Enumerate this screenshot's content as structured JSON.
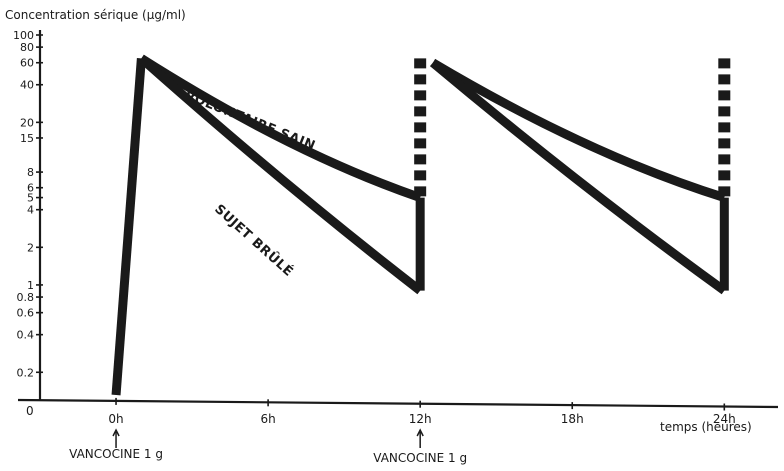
{
  "chart_data": {
    "type": "line",
    "title": "Concentration sérique (µg/ml)",
    "xlabel": "temps (heures)",
    "ylabel": "Concentration sérique (µg/ml)",
    "y_scale": "log",
    "ylim": [
      0.12,
      100
    ],
    "xlim": [
      -3,
      26
    ],
    "y_ticks": [
      {
        "value": 100,
        "label": "100"
      },
      {
        "value": 80,
        "label": "80"
      },
      {
        "value": 60,
        "label": "60"
      },
      {
        "value": 40,
        "label": "40"
      },
      {
        "value": 20,
        "label": "20"
      },
      {
        "value": 15,
        "label": "15"
      },
      {
        "value": 8,
        "label": "8"
      },
      {
        "value": 6,
        "label": "6"
      },
      {
        "value": 5,
        "label": "5"
      },
      {
        "value": 4,
        "label": "4"
      },
      {
        "value": 2,
        "label": "2"
      },
      {
        "value": 1,
        "label": "1"
      },
      {
        "value": 0.8,
        "label": "0.8"
      },
      {
        "value": 0.6,
        "label": "0.6"
      },
      {
        "value": 0.4,
        "label": "0.4"
      },
      {
        "value": 0.2,
        "label": "0.2"
      }
    ],
    "x_ticks": [
      {
        "value": 0,
        "label": "0h"
      },
      {
        "value": 6,
        "label": "6h"
      },
      {
        "value": 12,
        "label": "12h"
      },
      {
        "value": 18,
        "label": "18h"
      },
      {
        "value": 24,
        "label": "24h"
      }
    ],
    "origin_label": "0",
    "series": [
      {
        "name": "VOLONTAIRE SAIN",
        "points": [
          [
            1,
            65
          ],
          [
            12,
            5
          ],
          [
            12.5,
            60
          ],
          [
            24,
            5
          ]
        ]
      },
      {
        "name": "SUJET BRÛLÉ",
        "points": [
          [
            1,
            65
          ],
          [
            12,
            0.9
          ],
          [
            12.5,
            60
          ],
          [
            24,
            0.9
          ]
        ]
      }
    ],
    "annotations": [
      {
        "text": "VANCOCINE 1 g",
        "x": 0
      },
      {
        "text": "VANCOCINE 1 g",
        "x": 12
      }
    ],
    "grid": false,
    "legend": "none"
  }
}
